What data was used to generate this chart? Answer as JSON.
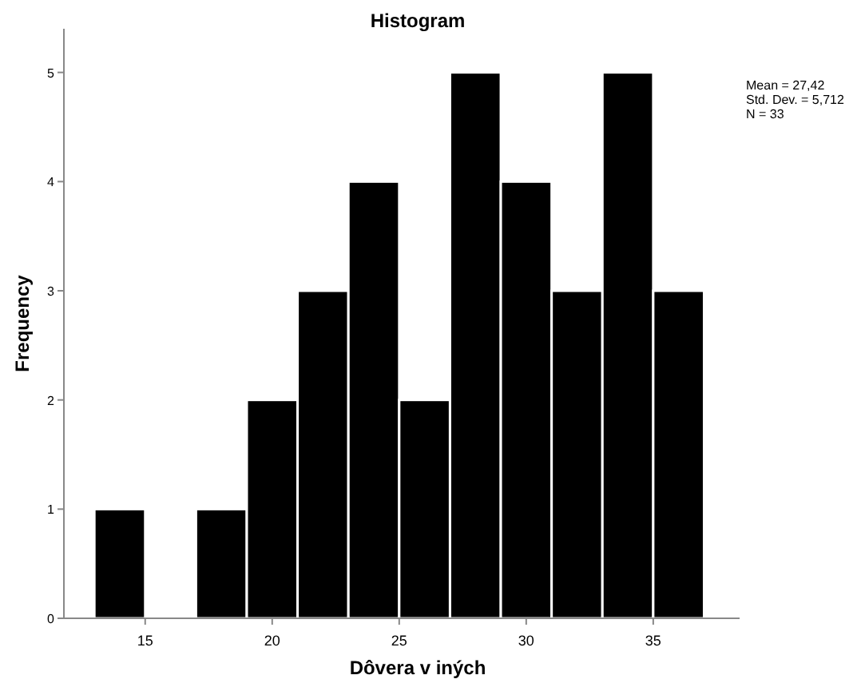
{
  "chart_data": {
    "type": "histogram",
    "title": "Histogram",
    "xlabel": "Dôvera v iných",
    "ylabel": "Frequency",
    "bins": [
      13,
      15,
      17,
      19,
      21,
      23,
      25,
      27,
      29,
      31,
      33,
      35,
      37
    ],
    "values": [
      1,
      0,
      1,
      2,
      3,
      4,
      2,
      5,
      4,
      3,
      5,
      3
    ],
    "color": "#000000",
    "xlim": [
      11.8,
      38.4
    ],
    "xticks": [
      15,
      20,
      25,
      30,
      35
    ],
    "ylim": [
      0,
      5.4
    ],
    "yticks": [
      0,
      1,
      2,
      3,
      4,
      5
    ],
    "annotations": [
      "Mean = 27,42",
      "Std. Dev. = 5,712",
      "N = 33"
    ]
  }
}
